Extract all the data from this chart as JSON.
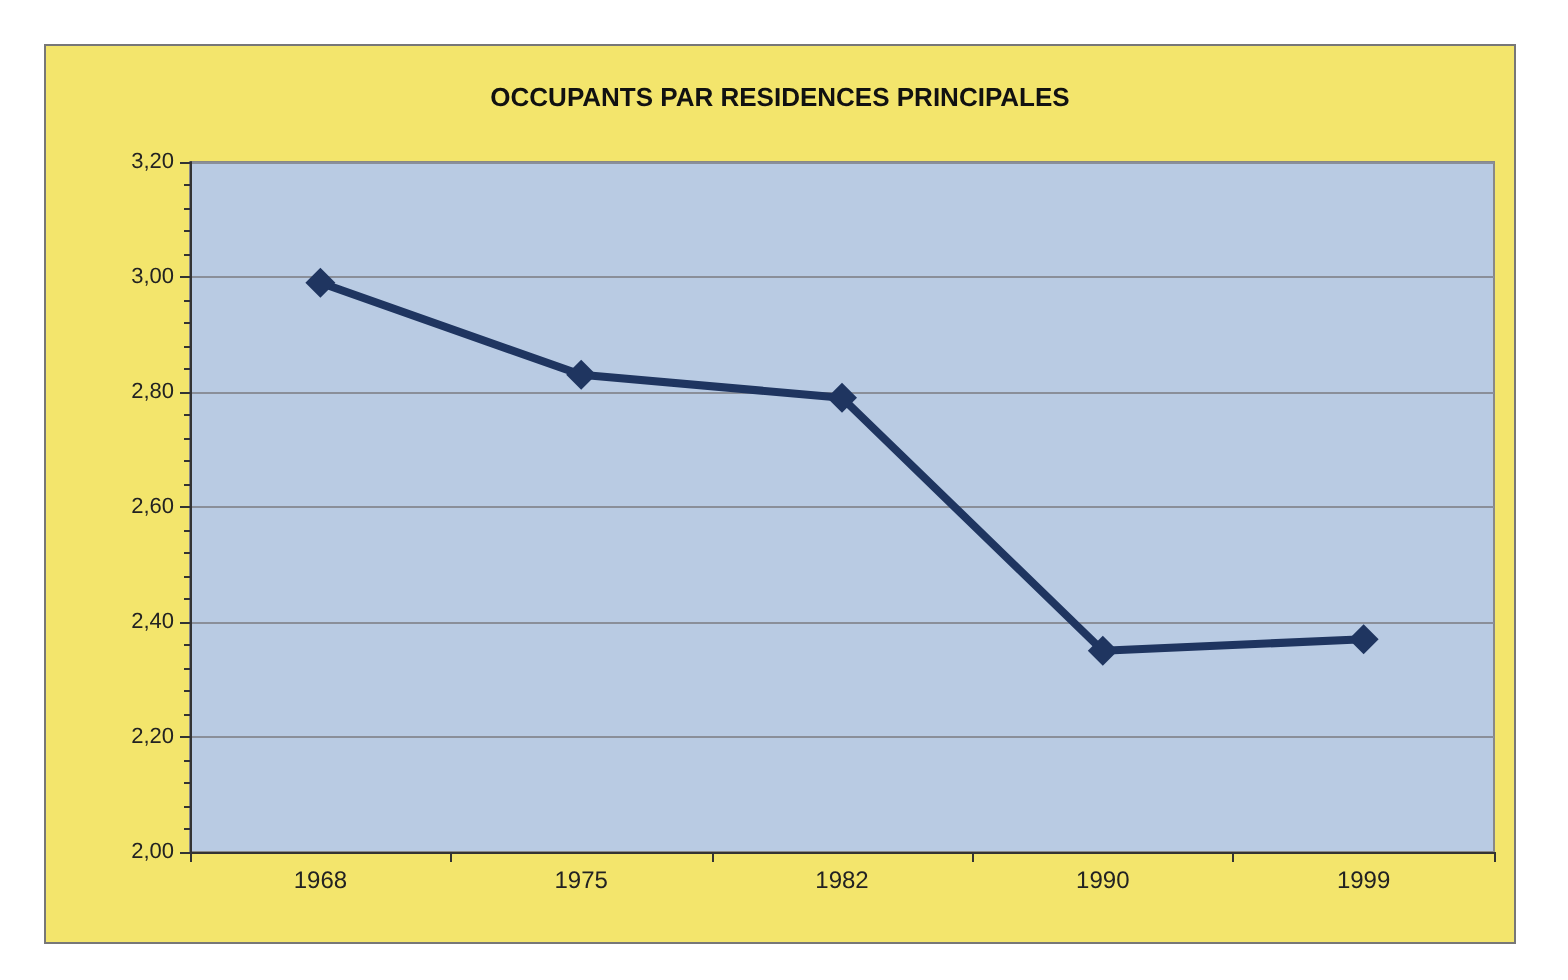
{
  "chart_data": {
    "type": "line",
    "title": "OCCUPANTS PAR RESIDENCES PRINCIPALES",
    "categories": [
      "1968",
      "1975",
      "1982",
      "1990",
      "1999"
    ],
    "series": [
      {
        "color": "#1f3560",
        "values": [
          2.99,
          2.83,
          2.79,
          2.35,
          2.37
        ]
      }
    ],
    "ylim": [
      2.0,
      3.2
    ],
    "yticks": [
      {
        "value": 2.0,
        "label": "2,00"
      },
      {
        "value": 2.2,
        "label": "2,20"
      },
      {
        "value": 2.4,
        "label": "2,40"
      },
      {
        "value": 2.6,
        "label": "2,60"
      },
      {
        "value": 2.8,
        "label": "2,80"
      },
      {
        "value": 3.0,
        "label": "3,00"
      },
      {
        "value": 3.2,
        "label": "3,20"
      }
    ],
    "grid": "y",
    "marker": "diamond",
    "line_style": "solid"
  }
}
